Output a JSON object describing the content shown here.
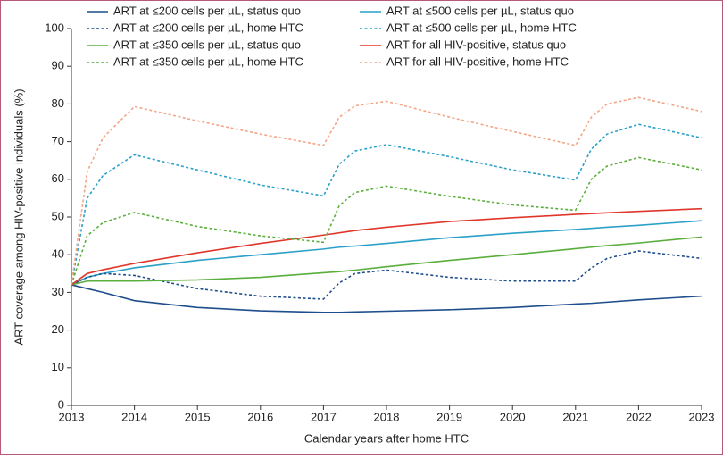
{
  "chart_data": {
    "type": "line",
    "xlabel": "Calendar years after home HTC",
    "ylabel": "ART coverage among HIV-positive individuals (%)",
    "x": [
      2013,
      2013.25,
      2013.5,
      2014,
      2015,
      2016,
      2017,
      2017.25,
      2017.5,
      2018,
      2019,
      2020,
      2021,
      2021.25,
      2021.5,
      2022,
      2023
    ],
    "series": [
      {
        "name": "ART at ≤200 cells per µL, status quo",
        "color": "#1f4e8c",
        "linestyle": "solid",
        "values": [
          32,
          31,
          30,
          27.8,
          26,
          25.1,
          24.7,
          24.7,
          24.8,
          25,
          25.4,
          26,
          26.9,
          27.1,
          27.4,
          28,
          29
        ]
      },
      {
        "name": "ART at ≤500 cells per µL, status quo",
        "color": "#2aa0c8",
        "linestyle": "solid",
        "values": [
          32,
          34,
          35,
          36.5,
          38.5,
          40,
          41.5,
          42,
          42.3,
          43,
          44.5,
          45.7,
          46.7,
          47,
          47.3,
          47.8,
          49
        ]
      },
      {
        "name": "ART at ≤200 cells per µL, home HTC",
        "color": "#1f4e8c",
        "linestyle": "dashed",
        "values": [
          32,
          34,
          35,
          34.5,
          31,
          29,
          28.2,
          32.5,
          35,
          35.9,
          34,
          33,
          33,
          36.5,
          39,
          41,
          39
        ]
      },
      {
        "name": "ART at ≤500 cells per µL, home HTC",
        "color": "#2aa0c8",
        "linestyle": "dashed",
        "values": [
          32,
          55,
          61,
          66.5,
          62.5,
          58.5,
          55.6,
          64,
          67.5,
          69.2,
          66,
          62.5,
          59.8,
          68,
          72,
          74.6,
          71
        ]
      },
      {
        "name": "ART at ≤350 cells per µL, status quo",
        "color": "#5aae3c",
        "linestyle": "solid",
        "values": [
          32,
          33,
          33,
          33,
          33.3,
          34,
          35.2,
          35.5,
          35.9,
          36.8,
          38.5,
          40,
          41.6,
          42,
          42.4,
          43.1,
          44.7
        ]
      },
      {
        "name": "ART for all HIV-positive, status quo",
        "color": "#e0372b",
        "linestyle": "solid",
        "values": [
          32,
          35,
          36,
          37.7,
          40.5,
          43,
          45.2,
          45.8,
          46.4,
          47.3,
          48.8,
          49.8,
          50.7,
          50.9,
          51.1,
          51.5,
          52.2
        ]
      },
      {
        "name": "ART at ≤350 cells per µL, home HTC",
        "color": "#5aae3c",
        "linestyle": "dashed",
        "values": [
          32,
          45,
          48.5,
          51.2,
          47.5,
          45,
          43.3,
          53,
          56.5,
          58.2,
          55.5,
          53.2,
          51.8,
          60,
          63.5,
          65.8,
          62.5
        ]
      },
      {
        "name": "ART for all HIV-positive, home HTC",
        "color": "#f4a585",
        "linestyle": "dashed",
        "values": [
          32,
          62,
          71,
          79.3,
          75.5,
          72,
          69,
          76.5,
          79.5,
          80.7,
          76.5,
          72.7,
          69,
          76.5,
          80,
          81.7,
          78
        ]
      }
    ],
    "xlim": [
      2013,
      2023
    ],
    "xticks": [
      2013,
      2014,
      2015,
      2016,
      2017,
      2018,
      2019,
      2020,
      2021,
      2022,
      2023
    ],
    "ylim": [
      0,
      100
    ],
    "yticks": [
      0,
      10,
      20,
      30,
      40,
      50,
      60,
      70,
      80,
      90,
      100
    ]
  }
}
